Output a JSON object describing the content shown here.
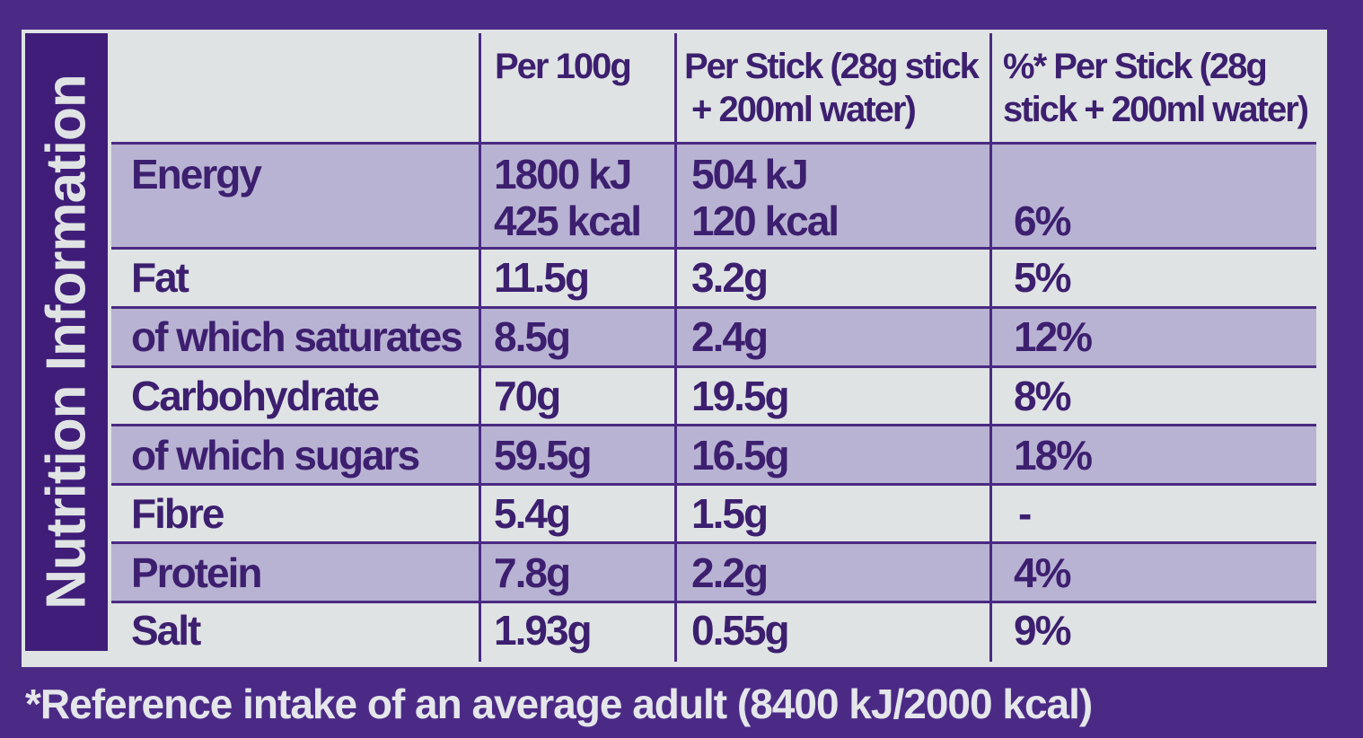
{
  "panel_title": "Nutrition Information",
  "headers": {
    "col1": "Per 100g",
    "col2_line1": "Per Stick (28g stick",
    "col2_line2": "+ 200ml water)",
    "col3_line1": "%* Per Stick (28g",
    "col3_line2": "stick + 200ml water)"
  },
  "rows": [
    {
      "name": "Energy",
      "per100_line1": "1800 kJ",
      "per100_line2": "425 kcal",
      "stick_line1": "504 kJ",
      "stick_line2": "120 kcal",
      "pct": "6%"
    },
    {
      "name": "Fat",
      "per100": "11.5g",
      "stick": "3.2g",
      "pct": "5%"
    },
    {
      "name": "of which saturates",
      "per100": "8.5g",
      "stick": "2.4g",
      "pct": "12%"
    },
    {
      "name": "Carbohydrate",
      "per100": "70g",
      "stick": "19.5g",
      "pct": "8%"
    },
    {
      "name": "of which sugars",
      "per100": "59.5g",
      "stick": "16.5g",
      "pct": "18%"
    },
    {
      "name": "Fibre",
      "per100": "5.4g",
      "stick": "1.5g",
      "pct": "-"
    },
    {
      "name": "Protein",
      "per100": "7.8g",
      "stick": "2.2g",
      "pct": "4%"
    },
    {
      "name": "Salt",
      "per100": "1.93g",
      "stick": "0.55g",
      "pct": "9%"
    }
  ],
  "footnote": "*Reference intake of an average adult (8400 kJ/2000 kcal)",
  "colors": {
    "brand_purple": "#4b2a86",
    "panel_bg": "#dfe3e4",
    "row_shade": "#b9b3d3",
    "text": "#3d1f6f"
  }
}
